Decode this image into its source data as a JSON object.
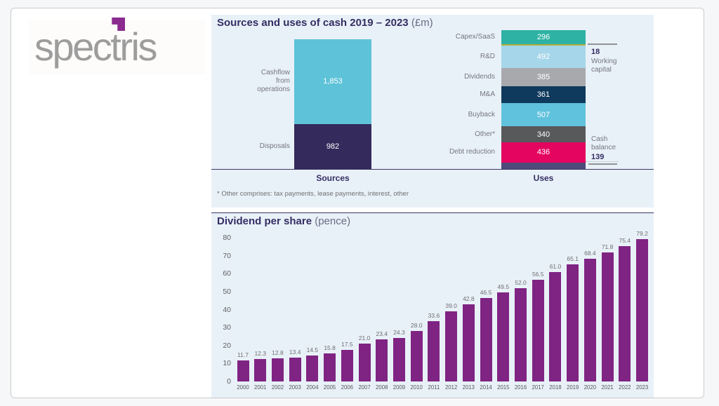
{
  "logo": {
    "pre": "spec",
    "t": "t",
    "post": "ris"
  },
  "cash_annotations": {
    "working_capital_value": "18",
    "working_capital_label": "Working capital",
    "cash_balance_label": "Cash balance",
    "cash_balance_value": "139"
  },
  "chart_data": [
    {
      "type": "bar",
      "subtype": "stacked-column-pair",
      "title": "Sources and uses of cash 2019 – 2023",
      "unit": "(£m)",
      "footnote": "* Other comprises: tax payments, lease payments, interest, other",
      "grid": false,
      "legend_position": "none",
      "columns": [
        {
          "label": "Sources",
          "segments": [
            {
              "name": "Cashflow from operations",
              "value": 1853,
              "label": "1,853",
              "color": "#5ec3d9"
            },
            {
              "name": "Disposals",
              "value": 982,
              "label": "982",
              "color": "#342a5b"
            }
          ]
        },
        {
          "label": "Uses",
          "segments": [
            {
              "name": "Capex/SaaS",
              "value": 296,
              "label": "296",
              "color": "#2eb2a4"
            },
            {
              "name": "Working capital",
              "value": 18,
              "label": "18",
              "color": "#b3ad3e",
              "thin": true
            },
            {
              "name": "R&D",
              "value": 492,
              "label": "492",
              "color": "#a6d6e9"
            },
            {
              "name": "Dividends",
              "value": 385,
              "label": "385",
              "color": "#a8a9ad"
            },
            {
              "name": "M&A",
              "value": 361,
              "label": "361",
              "color": "#0f3a5d"
            },
            {
              "name": "Buyback",
              "value": 507,
              "label": "507",
              "color": "#60c2dc"
            },
            {
              "name": "Other*",
              "value": 340,
              "label": "340",
              "color": "#58595b"
            },
            {
              "name": "Debt reduction",
              "value": 436,
              "label": "436",
              "color": "#e40560"
            },
            {
              "name": "Cash balance",
              "value": 139,
              "label": "139",
              "color": "#4e4a79",
              "annotation_only": true
            }
          ]
        }
      ]
    },
    {
      "type": "bar",
      "title": "Dividend per share",
      "unit": "(pence)",
      "bar_color": "#7f2483",
      "ylim": [
        0,
        80
      ],
      "y_ticks": [
        80,
        70,
        60,
        50,
        40,
        30,
        20,
        10,
        0
      ],
      "grid": false,
      "categories": [
        "2000",
        "2001",
        "2002",
        "2003",
        "2004",
        "2005",
        "2006",
        "2007",
        "2008",
        "2009",
        "2010",
        "2011",
        "2012",
        "2013",
        "2014",
        "2015",
        "2016",
        "2017",
        "2018",
        "2019",
        "2020",
        "2021",
        "2022",
        "2023"
      ],
      "values": [
        11.7,
        12.3,
        12.8,
        13.4,
        14.5,
        15.8,
        17.5,
        21.0,
        23.4,
        24.3,
        28.0,
        33.6,
        39.0,
        42.8,
        46.5,
        49.5,
        52.0,
        56.5,
        61.0,
        65.1,
        68.4,
        71.8,
        75.4,
        79.2
      ],
      "labels": [
        "11.7",
        "12.3",
        "12.8",
        "13.4",
        "14.5",
        "15.8",
        "17.5",
        "21.0",
        "23.4",
        "24.3",
        "28.0",
        "33.6",
        "39.0",
        "42.8",
        "46.5",
        "49.5",
        "52.0",
        "56.5",
        "61.0",
        "65.1",
        "68.4",
        "71.8",
        "75.4",
        "79.2"
      ]
    }
  ]
}
